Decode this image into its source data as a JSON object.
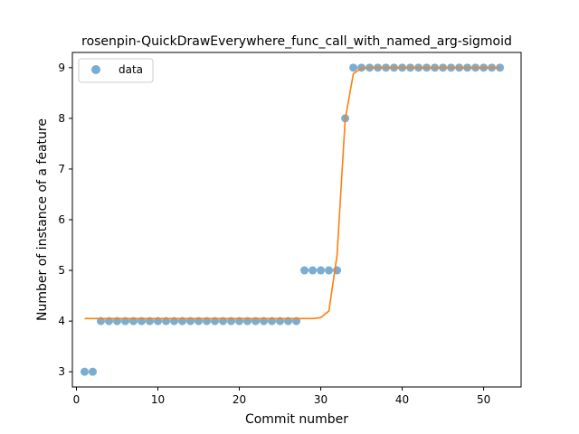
{
  "chart_data": {
    "type": "scatter",
    "title": "rosenpin-QuickDrawEverywhere_func_call_with_named_arg-sigmoid",
    "xlabel": "Commit number",
    "ylabel": "Number of instance of a feature",
    "xlim": [
      -0.5,
      54.6
    ],
    "ylim": [
      2.7,
      9.3
    ],
    "xticks": [
      0,
      10,
      20,
      30,
      40,
      50
    ],
    "yticks": [
      3,
      4,
      5,
      6,
      7,
      8,
      9
    ],
    "legend": {
      "placement": "upper-left",
      "entries": [
        "data"
      ]
    },
    "colors": {
      "points": "#1f77b4",
      "fit": "#ff7f0e"
    },
    "series": [
      {
        "name": "data",
        "kind": "points",
        "x": [
          1,
          2,
          3,
          4,
          5,
          6,
          7,
          8,
          9,
          10,
          11,
          12,
          13,
          14,
          15,
          16,
          17,
          18,
          19,
          20,
          21,
          22,
          23,
          24,
          25,
          26,
          27,
          28,
          29,
          30,
          31,
          32,
          33,
          34,
          35,
          36,
          37,
          38,
          39,
          40,
          41,
          42,
          43,
          44,
          45,
          46,
          47,
          48,
          49,
          50,
          51,
          52
        ],
        "y": [
          3,
          3,
          4,
          4,
          4,
          4,
          4,
          4,
          4,
          4,
          4,
          4,
          4,
          4,
          4,
          4,
          4,
          4,
          4,
          4,
          4,
          4,
          4,
          4,
          4,
          4,
          4,
          5,
          5,
          5,
          5,
          5,
          8,
          9,
          9,
          9,
          9,
          9,
          9,
          9,
          9,
          9,
          9,
          9,
          9,
          9,
          9,
          9,
          9,
          9,
          9,
          9
        ]
      },
      {
        "kind": "fit",
        "x": [
          1,
          2,
          3,
          4,
          5,
          6,
          7,
          8,
          9,
          10,
          11,
          12,
          13,
          14,
          15,
          16,
          17,
          18,
          19,
          20,
          21,
          22,
          23,
          24,
          25,
          26,
          27,
          28,
          29,
          30,
          31,
          32,
          33,
          34,
          35,
          36,
          37,
          38,
          39,
          40,
          41,
          42,
          43,
          44,
          45,
          46,
          47,
          48,
          49,
          50,
          51,
          52
        ],
        "y": [
          4.05,
          4.05,
          4.05,
          4.05,
          4.05,
          4.05,
          4.05,
          4.05,
          4.05,
          4.05,
          4.05,
          4.05,
          4.05,
          4.05,
          4.05,
          4.05,
          4.05,
          4.05,
          4.05,
          4.05,
          4.05,
          4.05,
          4.05,
          4.05,
          4.05,
          4.05,
          4.05,
          4.05,
          4.05,
          4.07,
          4.2,
          5.3,
          7.98,
          8.88,
          8.99,
          9,
          9,
          9,
          9,
          9,
          9,
          9,
          9,
          9,
          9,
          9,
          9,
          9,
          9,
          9,
          9,
          9
        ]
      }
    ]
  }
}
